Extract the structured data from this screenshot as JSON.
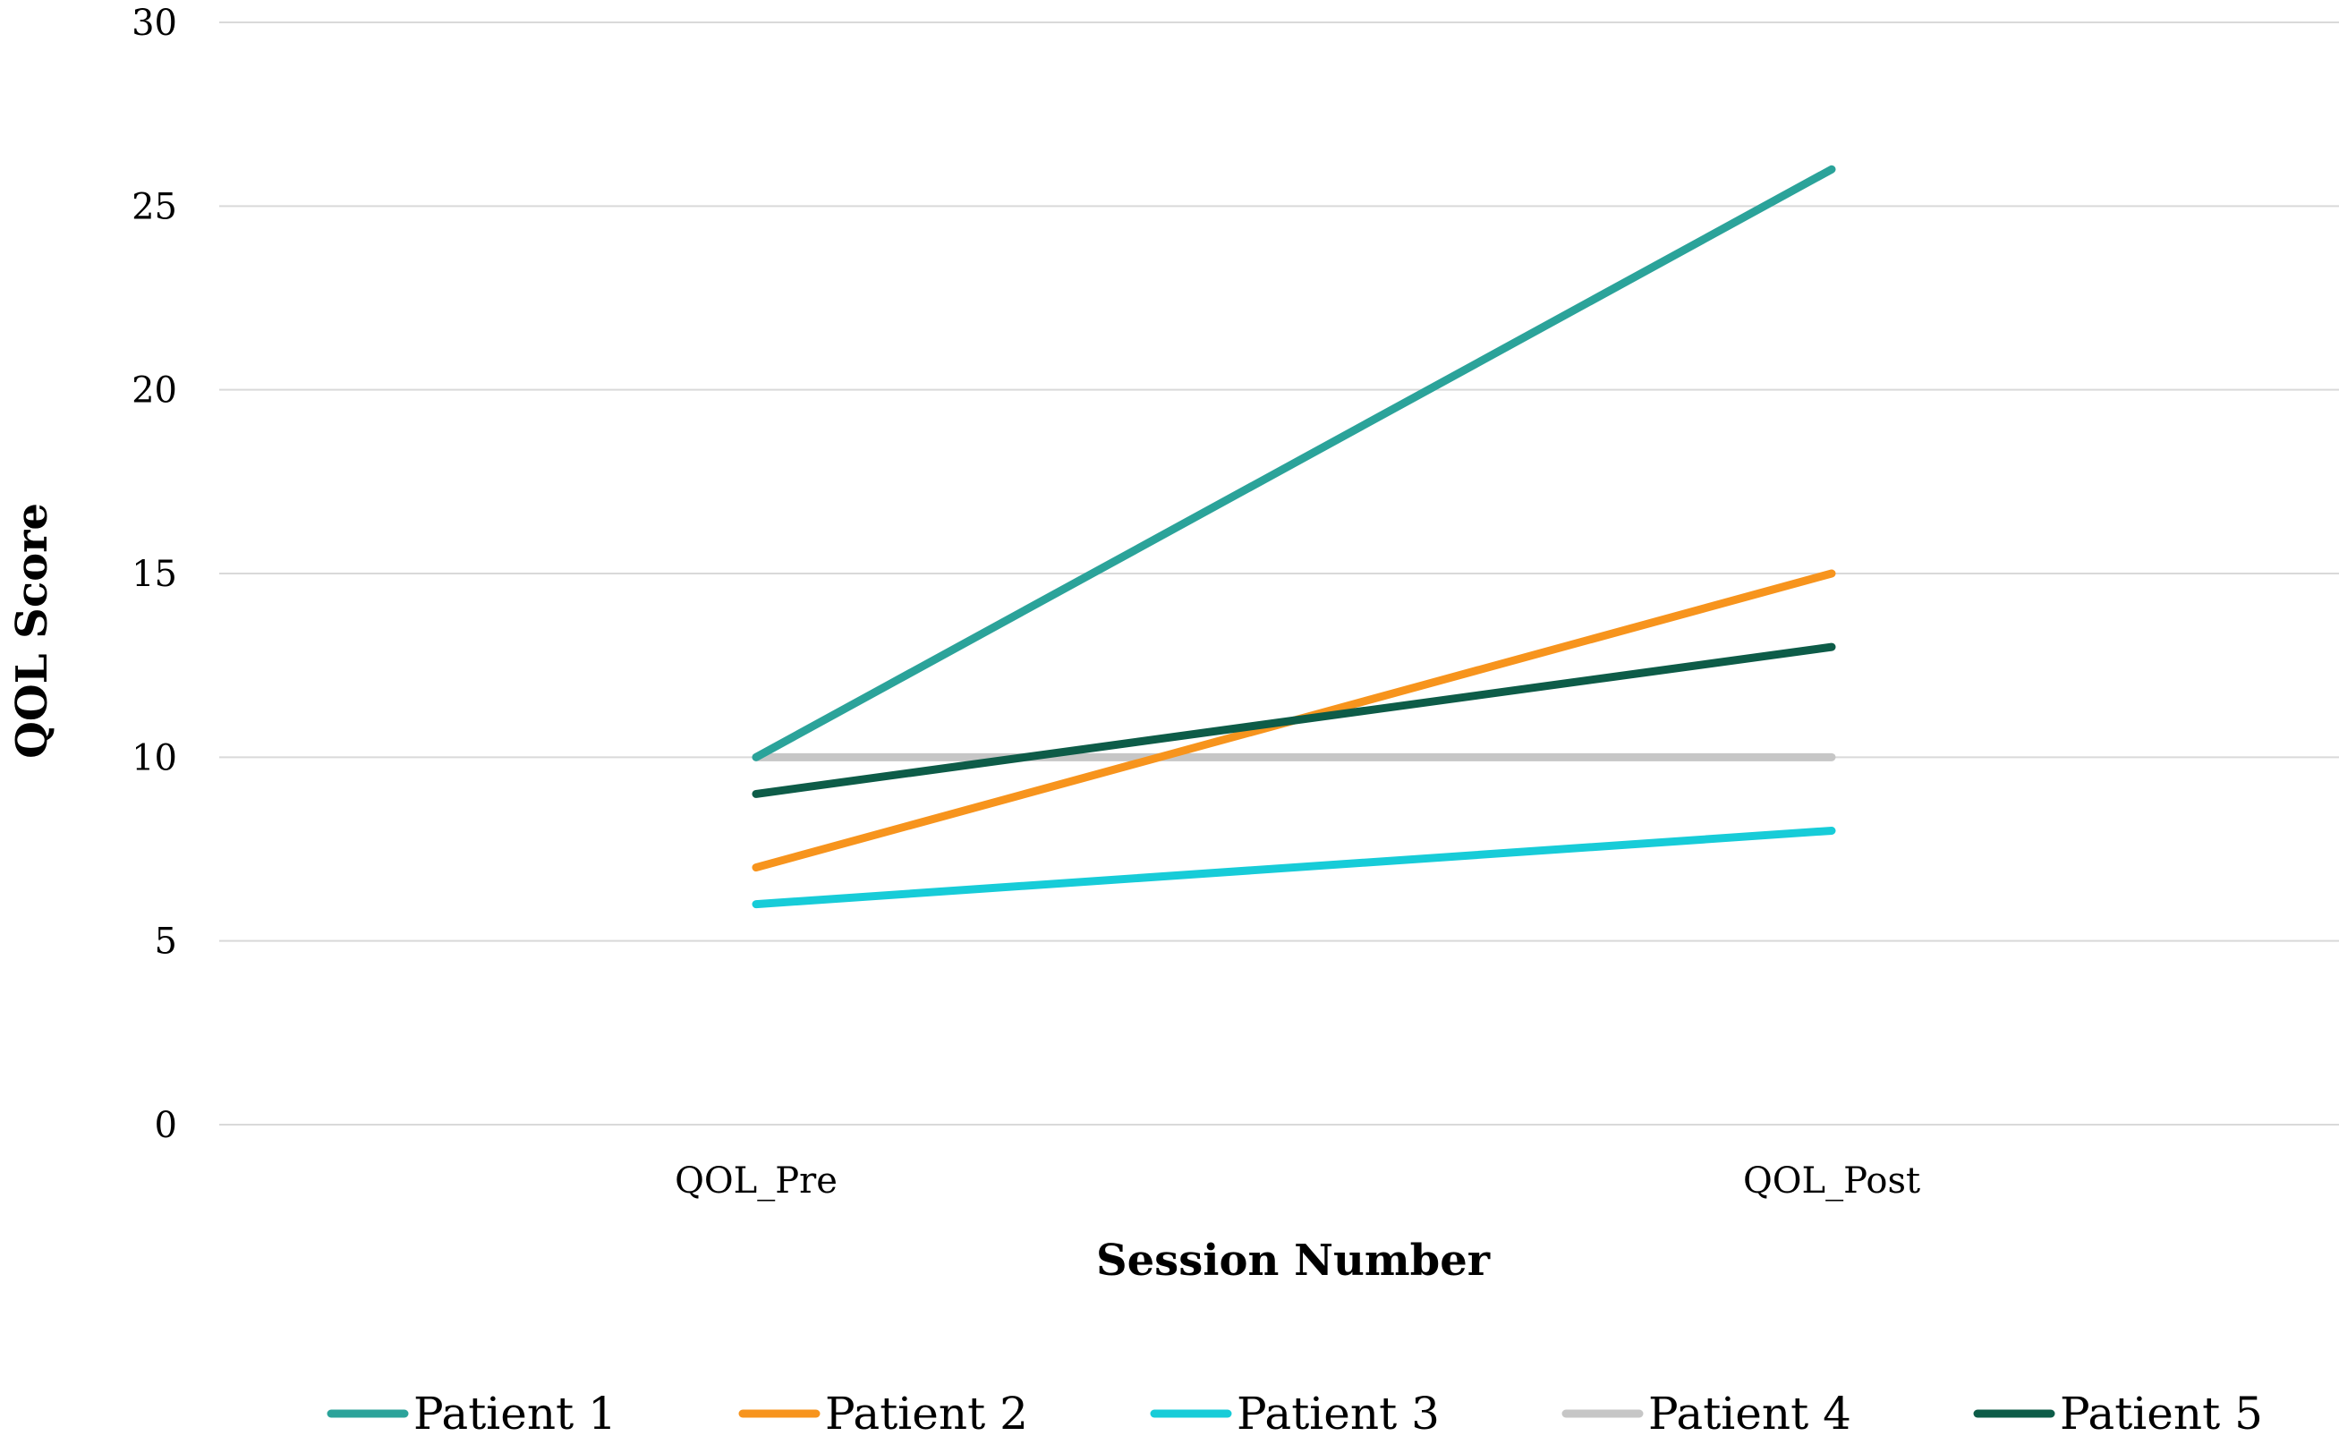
{
  "chart_data": {
    "type": "line",
    "title": "",
    "xlabel": "Session Number",
    "ylabel": "QOL Score",
    "categories": [
      "QOL_Pre",
      "QOL_Post"
    ],
    "ylim": [
      0,
      30
    ],
    "yticks": [
      "0",
      "5",
      "10",
      "15",
      "20",
      "25",
      "30"
    ],
    "grid": true,
    "legend_position": "bottom",
    "series": [
      {
        "name": "Patient 1",
        "color": "#2BA39A",
        "values": [
          10,
          26
        ]
      },
      {
        "name": "Patient 2",
        "color": "#F7941D",
        "values": [
          7,
          15
        ]
      },
      {
        "name": "Patient 3",
        "color": "#17CCD8",
        "values": [
          6,
          8
        ]
      },
      {
        "name": "Patient 4",
        "color": "#C6C6C6",
        "values": [
          10,
          10
        ]
      },
      {
        "name": "Patient 5",
        "color": "#0D5C48",
        "values": [
          9,
          13
        ]
      }
    ]
  }
}
